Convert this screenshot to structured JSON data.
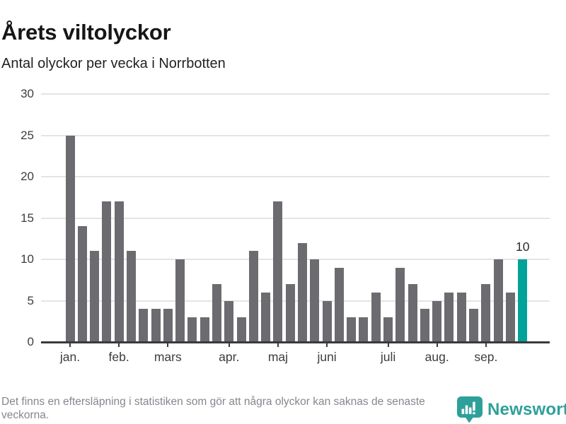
{
  "header": {
    "title": "Årets viltolyckor",
    "subtitle": "Antal olyckor per vecka i Norrbotten"
  },
  "chart_data": {
    "type": "bar",
    "title": "Årets viltolyckor",
    "subtitle": "Antal olyckor per vecka i Norrbotten",
    "xlabel": "",
    "ylabel": "",
    "ylim": [
      0,
      30
    ],
    "y_ticks": [
      0,
      5,
      10,
      15,
      20,
      25,
      30
    ],
    "grid": true,
    "legend": false,
    "values": [
      25,
      14,
      11,
      17,
      17,
      11,
      4,
      4,
      4,
      10,
      3,
      3,
      7,
      5,
      3,
      11,
      6,
      17,
      7,
      12,
      10,
      5,
      9,
      3,
      3,
      6,
      3,
      9,
      7,
      4,
      5,
      6,
      6,
      4,
      7,
      10,
      6,
      10
    ],
    "month_ticks": [
      {
        "label": "jan.",
        "index": 0
      },
      {
        "label": "feb.",
        "index": 4
      },
      {
        "label": "mars",
        "index": 8
      },
      {
        "label": "apr.",
        "index": 13
      },
      {
        "label": "maj",
        "index": 17
      },
      {
        "label": "juni",
        "index": 21
      },
      {
        "label": "juli",
        "index": 26
      },
      {
        "label": "aug.",
        "index": 30
      },
      {
        "label": "sep.",
        "index": 34
      }
    ],
    "highlight_last_index": 37,
    "annotation": {
      "bar_index": 37,
      "value_label": "10"
    },
    "colors": {
      "bar": "#6c6b70",
      "highlight": "#00a29a",
      "grid": "#e4e4e4",
      "axis": "#3a3a3a",
      "tick_text": "#3d3d3d"
    }
  },
  "footer": {
    "note": "Det finns en eftersläpning i statistiken som gör att några olyckor kan saknas de senaste veckorna.",
    "brand": "Newsworthy",
    "brand_color": "#2ea09a"
  }
}
